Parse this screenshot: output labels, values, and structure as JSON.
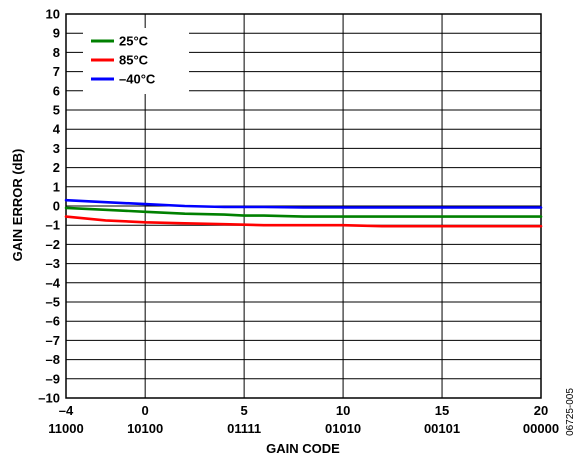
{
  "chart_data": {
    "type": "line",
    "xlabel": "GAIN CODE",
    "ylabel": "GAIN ERROR (dB)",
    "xlim": [
      -4,
      20
    ],
    "ylim": [
      -10,
      10
    ],
    "grid": true,
    "legend_position": "top-left",
    "x_ticks": [
      {
        "value": -4,
        "label": "–4",
        "code": "11000"
      },
      {
        "value": 0,
        "label": "0",
        "code": "10100"
      },
      {
        "value": 5,
        "label": "5",
        "code": "01111"
      },
      {
        "value": 10,
        "label": "10",
        "code": "01010"
      },
      {
        "value": 15,
        "label": "15",
        "code": "00101"
      },
      {
        "value": 20,
        "label": "20",
        "code": "00000"
      }
    ],
    "y_ticks": [
      {
        "value": 10,
        "label": "10"
      },
      {
        "value": 9,
        "label": "9"
      },
      {
        "value": 8,
        "label": "8"
      },
      {
        "value": 7,
        "label": "7"
      },
      {
        "value": 6,
        "label": "6"
      },
      {
        "value": 5,
        "label": "5"
      },
      {
        "value": 4,
        "label": "4"
      },
      {
        "value": 3,
        "label": "3"
      },
      {
        "value": 2,
        "label": "2"
      },
      {
        "value": 1,
        "label": "1"
      },
      {
        "value": 0,
        "label": "0"
      },
      {
        "value": -1,
        "label": "–1"
      },
      {
        "value": -2,
        "label": "–2"
      },
      {
        "value": -3,
        "label": "–3"
      },
      {
        "value": -4,
        "label": "–4"
      },
      {
        "value": -5,
        "label": "–5"
      },
      {
        "value": -6,
        "label": "–6"
      },
      {
        "value": -7,
        "label": "–7"
      },
      {
        "value": -8,
        "label": "–8"
      },
      {
        "value": -9,
        "label": "–9"
      },
      {
        "value": -10,
        "label": "–10"
      }
    ],
    "series": [
      {
        "name": "25°C",
        "color": "#008000",
        "x": [
          -4,
          -2,
          0,
          2,
          4,
          5,
          6,
          8,
          10,
          12,
          14,
          16,
          18,
          20
        ],
        "y": [
          -0.1,
          -0.2,
          -0.3,
          -0.4,
          -0.45,
          -0.5,
          -0.5,
          -0.55,
          -0.55,
          -0.55,
          -0.55,
          -0.55,
          -0.55,
          -0.55
        ]
      },
      {
        "name": "85°C",
        "color": "#ff0000",
        "x": [
          -4,
          -2,
          0,
          2,
          4,
          6,
          8,
          10,
          12,
          14,
          16,
          18,
          20
        ],
        "y": [
          -0.55,
          -0.75,
          -0.85,
          -0.9,
          -0.95,
          -1.0,
          -1.0,
          -1.0,
          -1.05,
          -1.05,
          -1.05,
          -1.05,
          -1.05
        ]
      },
      {
        "name": "–40°C",
        "color": "#0000ff",
        "x": [
          -4,
          -2,
          0,
          2,
          4,
          6,
          8,
          10,
          12,
          14,
          16,
          18,
          20
        ],
        "y": [
          0.3,
          0.2,
          0.1,
          0.0,
          -0.05,
          -0.05,
          -0.08,
          -0.08,
          -0.08,
          -0.08,
          -0.08,
          -0.08,
          -0.08
        ]
      }
    ]
  },
  "figure_id": "06725-005"
}
